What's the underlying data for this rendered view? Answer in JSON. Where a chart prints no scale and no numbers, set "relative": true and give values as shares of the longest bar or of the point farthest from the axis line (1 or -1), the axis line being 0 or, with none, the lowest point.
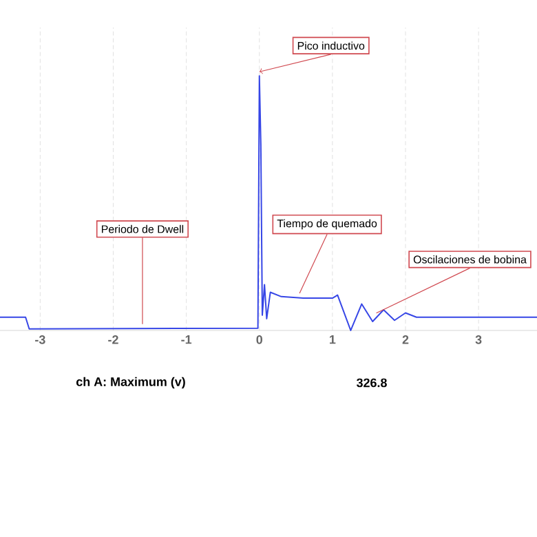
{
  "chart_data": {
    "type": "line",
    "relative": true,
    "color": "#3646e6",
    "grid": "x",
    "xlim": [
      -3.55,
      3.8
    ],
    "xticks": [
      -3,
      -2,
      -1,
      0,
      1,
      2,
      3
    ],
    "x": [
      -3.55,
      -3.2,
      -3.15,
      -0.02,
      0.0,
      0.02,
      0.04,
      0.07,
      0.1,
      0.15,
      0.3,
      0.6,
      1.0,
      1.07,
      1.25,
      1.4,
      1.55,
      1.7,
      1.85,
      2.0,
      2.15,
      3.8
    ],
    "values": [
      0.052,
      0.052,
      0.006,
      0.009,
      1,
      0.73,
      0.06,
      0.18,
      0.046,
      0.15,
      0.133,
      0.127,
      0.127,
      0.139,
      0,
      0.104,
      0.035,
      0.081,
      0.04,
      0.069,
      0.052,
      0.052
    ],
    "annotations": [
      {
        "text": "Pico inductivo",
        "x": 0,
        "y": 1
      },
      {
        "text": "Periodo de Dwell",
        "x": -1.6,
        "y": 0.009
      },
      {
        "text": "Tiempo de quemado",
        "x": 0.55,
        "y": 0.13
      },
      {
        "text": "Oscilaciones de bobina",
        "x": 1.6,
        "y": 0.052
      },
      "ch A: Maximum (v)",
      "326.8"
    ]
  }
}
